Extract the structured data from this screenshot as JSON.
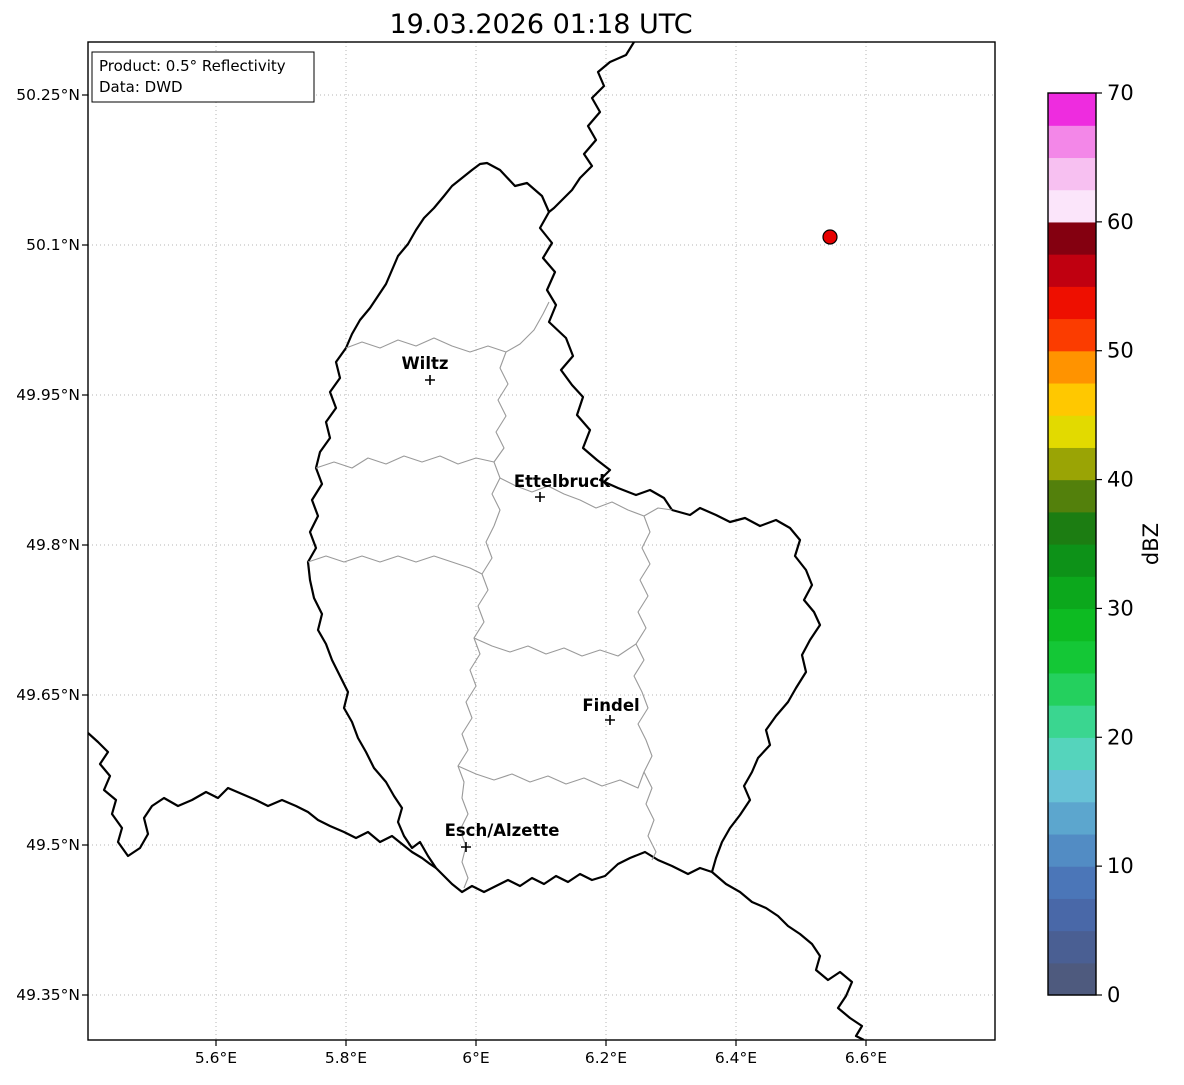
{
  "title": "19.03.2026 01:18 UTC",
  "info_box": {
    "line1": "Product: 0.5° Reflectivity",
    "line2": "Data: DWD"
  },
  "axes": {
    "y_ticks": [
      "50.25°N",
      "50.1°N",
      "49.95°N",
      "49.8°N",
      "49.65°N",
      "49.5°N",
      "49.35°N"
    ],
    "x_ticks": [
      "5.6°E",
      "5.8°E",
      "6°E",
      "6.2°E",
      "6.4°E",
      "6.6°E"
    ]
  },
  "map": {
    "cities": [
      {
        "name": "Wiltz"
      },
      {
        "name": "Ettelbruck"
      },
      {
        "name": "Findel"
      },
      {
        "name": "Esch/Alzette"
      }
    ],
    "radar_site_dot": {
      "color": "#e60000"
    }
  },
  "colorbar": {
    "label": "dBZ",
    "ticks": [
      "0",
      "10",
      "20",
      "30",
      "40",
      "50",
      "60",
      "70"
    ],
    "min": 0,
    "max": 70,
    "colors_bottom_to_top": [
      "#4e5a7e",
      "#4a5f93",
      "#4968a8",
      "#4b76b8",
      "#528cc4",
      "#5ca6ce",
      "#68c2d6",
      "#55d4bc",
      "#3ad690",
      "#24d05e",
      "#14c736",
      "#0dbb22",
      "#0ca81c",
      "#0d9218",
      "#1c7d12",
      "#53800c",
      "#9aa405",
      "#e2da00",
      "#ffc800",
      "#ff9300",
      "#fb3c00",
      "#ee0f00",
      "#c00010",
      "#840010",
      "#fbe5fa",
      "#f7c0f1",
      "#f387e8",
      "#ee2cdf"
    ]
  }
}
